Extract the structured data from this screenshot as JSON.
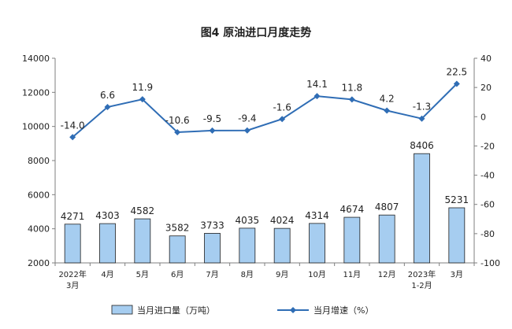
{
  "chart_data": {
    "type": "bar+line",
    "title": "图4  原油进口月度走势",
    "categories": [
      [
        "2022年",
        "3月"
      ],
      [
        "4月"
      ],
      [
        "5月"
      ],
      [
        "6月"
      ],
      [
        "7月"
      ],
      [
        "8月"
      ],
      [
        "9月"
      ],
      [
        "10月"
      ],
      [
        "11月"
      ],
      [
        "12月"
      ],
      [
        "2023年",
        "1-2月"
      ],
      [
        "3月"
      ]
    ],
    "series": [
      {
        "name": "当月进口量（万吨）",
        "type": "bar",
        "axis": "left",
        "values": [
          4271,
          4303,
          4582,
          3582,
          3733,
          4035,
          4024,
          4314,
          4674,
          4807,
          8406,
          5231
        ],
        "labels": [
          "4271",
          "4303",
          "4582",
          "3582",
          "3733",
          "4035",
          "4024",
          "4314",
          "4674",
          "4807",
          "8406",
          "5231"
        ]
      },
      {
        "name": "当月增速（%）",
        "type": "line",
        "axis": "right",
        "values": [
          -14.0,
          6.6,
          11.9,
          -10.6,
          -9.5,
          -9.4,
          -1.6,
          14.1,
          11.8,
          4.2,
          -1.3,
          22.5
        ],
        "labels": [
          "-14.0",
          "6.6",
          "11.9",
          "-10.6",
          "-9.5",
          "-9.4",
          "-1.6",
          "14.1",
          "11.8",
          "4.2",
          "-1.3",
          "22.5"
        ]
      }
    ],
    "y_left": {
      "range": [
        2000,
        14000
      ],
      "ticks": [
        "2000",
        "4000",
        "6000",
        "8000",
        "10000",
        "12000",
        "14000"
      ]
    },
    "y_right": {
      "range": [
        -100,
        40
      ],
      "ticks": [
        "-100",
        "-80",
        "-60",
        "-40",
        "-20",
        "0",
        "20",
        "40"
      ]
    },
    "legend_position": "bottom",
    "grid": false,
    "colors": {
      "bar_fill": "#a6cdf0",
      "bar_stroke": "#1f1f1f",
      "line": "#2f6db5",
      "axis": "#7f7f7f"
    }
  }
}
